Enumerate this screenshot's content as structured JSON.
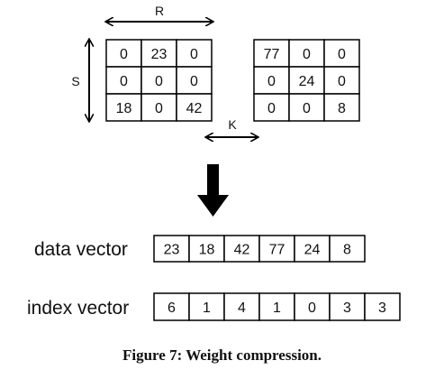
{
  "labels": {
    "r": "R",
    "s": "S",
    "k": "K"
  },
  "matrices": [
    {
      "rows": [
        [
          "0",
          "23",
          "0"
        ],
        [
          "0",
          "0",
          "0"
        ],
        [
          "18",
          "0",
          "42"
        ]
      ]
    },
    {
      "rows": [
        [
          "77",
          "0",
          "0"
        ],
        [
          "0",
          "24",
          "0"
        ],
        [
          "0",
          "0",
          "8"
        ]
      ]
    }
  ],
  "data_vector": {
    "label": "data vector",
    "values": [
      "23",
      "18",
      "42",
      "77",
      "24",
      "8"
    ]
  },
  "index_vector": {
    "label": "index vector",
    "values": [
      "6",
      "1",
      "4",
      "1",
      "0",
      "3",
      "3"
    ]
  },
  "caption": "Figure 7: Weight compression."
}
